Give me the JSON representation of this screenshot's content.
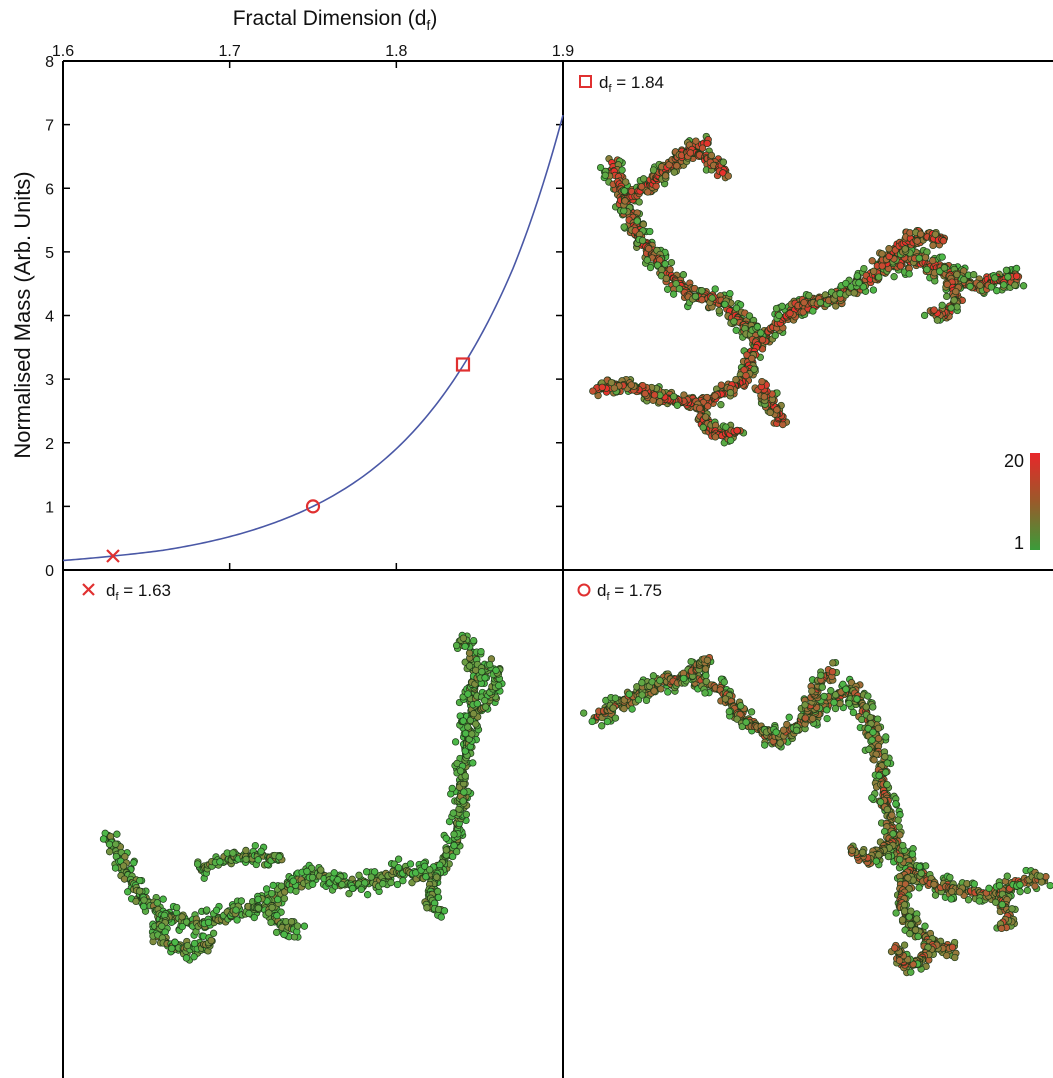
{
  "chart_data": [
    {
      "type": "line",
      "title": "",
      "xlabel_main": "Fractal Dimension (d",
      "xlabel_sub": "f",
      "xlabel_close": ")",
      "ylabel": "Normalised Mass (Arb. Units)",
      "xlim": [
        1.6,
        1.9
      ],
      "ylim": [
        0,
        8
      ],
      "x_ticks": [
        "1.6",
        "1.7",
        "1.8",
        "1.9"
      ],
      "y_ticks": [
        "0",
        "1",
        "2",
        "3",
        "4",
        "5",
        "6",
        "7",
        "8"
      ],
      "x_tick_values": [
        1.6,
        1.7,
        1.8,
        1.9
      ],
      "y_tick_values": [
        0,
        1,
        2,
        3,
        4,
        5,
        6,
        7,
        8
      ],
      "grid": false,
      "series": [
        {
          "color": "#4a58a6",
          "x": [
            1.6,
            1.63,
            1.66,
            1.69,
            1.72,
            1.75,
            1.78,
            1.81,
            1.84,
            1.87,
            1.9
          ],
          "y": [
            0.15,
            0.22,
            0.31,
            0.46,
            0.68,
            1.0,
            1.47,
            2.17,
            3.21,
            4.74,
            7.15
          ]
        }
      ],
      "markers": [
        {
          "shape": "x",
          "x": 1.63,
          "y": 0.22,
          "color": "#e03030"
        },
        {
          "shape": "o",
          "x": 1.75,
          "y": 1.0,
          "color": "#e03030"
        },
        {
          "shape": "s",
          "x": 1.84,
          "y": 3.23,
          "color": "#e03030"
        }
      ]
    }
  ],
  "panels": {
    "top_right": {
      "prefix": "d",
      "sub": "f",
      "value_text": " = 1.84",
      "marker": "square"
    },
    "bottom_left": {
      "prefix": "d",
      "sub": "f",
      "value_text": " = 1.63",
      "marker": "cross"
    },
    "bottom_right": {
      "prefix": "d",
      "sub": "f",
      "value_text": " = 1.75",
      "marker": "circle"
    }
  },
  "colorbar": {
    "max_label": "20",
    "min_label": "1",
    "color_high": "#e8272a",
    "color_low": "#3a9c3a"
  },
  "particle_colors": {
    "low": "#4cb848",
    "high": "#e8302c",
    "edge": "#1f3a1a"
  },
  "aggregates": [
    {
      "panel": "top_right",
      "path": [
        [
          612,
          165
        ],
        [
          625,
          200
        ],
        [
          640,
          240
        ],
        [
          665,
          270
        ],
        [
          690,
          295
        ],
        [
          720,
          300
        ],
        [
          740,
          320
        ],
        [
          760,
          340
        ],
        [
          775,
          325
        ],
        [
          800,
          305
        ],
        [
          830,
          300
        ],
        [
          860,
          285
        ],
        [
          890,
          265
        ],
        [
          920,
          260
        ],
        [
          950,
          275
        ],
        [
          975,
          285
        ],
        [
          1000,
          280
        ],
        [
          1020,
          275
        ]
      ],
      "branches": [
        [
          [
            625,
            200
          ],
          [
            650,
            185
          ],
          [
            670,
            165
          ],
          [
            690,
            150
          ],
          [
            710,
            140
          ]
        ],
        [
          [
            690,
            150
          ],
          [
            710,
            160
          ],
          [
            725,
            175
          ]
        ],
        [
          [
            760,
            340
          ],
          [
            750,
            360
          ],
          [
            745,
            380
          ],
          [
            720,
            395
          ],
          [
            700,
            405
          ],
          [
            670,
            400
          ],
          [
            640,
            390
          ],
          [
            620,
            385
          ],
          [
            595,
            390
          ]
        ],
        [
          [
            700,
            405
          ],
          [
            705,
            425
          ],
          [
            720,
            435
          ],
          [
            740,
            430
          ]
        ],
        [
          [
            780,
            420
          ],
          [
            770,
            400
          ],
          [
            760,
            385
          ]
        ],
        [
          [
            950,
            275
          ],
          [
            955,
            300
          ],
          [
            945,
            315
          ],
          [
            930,
            310
          ]
        ],
        [
          [
            880,
            265
          ],
          [
            900,
            245
          ],
          [
            920,
            235
          ],
          [
            945,
            240
          ]
        ]
      ],
      "density": 7,
      "red_bias": 0.55
    },
    {
      "panel": "bottom_left",
      "path": [
        [
          108,
          835
        ],
        [
          125,
          870
        ],
        [
          140,
          895
        ],
        [
          165,
          915
        ],
        [
          195,
          925
        ],
        [
          230,
          915
        ],
        [
          265,
          905
        ],
        [
          290,
          885
        ],
        [
          320,
          875
        ],
        [
          350,
          885
        ],
        [
          380,
          880
        ],
        [
          405,
          870
        ],
        [
          420,
          880
        ],
        [
          440,
          865
        ],
        [
          455,
          845
        ],
        [
          460,
          800
        ],
        [
          465,
          760
        ],
        [
          470,
          720
        ],
        [
          475,
          680
        ],
        [
          470,
          650
        ],
        [
          462,
          638
        ]
      ],
      "branches": [
        [
          [
            165,
            915
          ],
          [
            155,
            935
          ],
          [
            170,
            945
          ],
          [
            190,
            950
          ],
          [
            215,
            940
          ]
        ],
        [
          [
            265,
            905
          ],
          [
            280,
            925
          ],
          [
            300,
            930
          ]
        ],
        [
          [
            200,
            870
          ],
          [
            225,
            860
          ],
          [
            255,
            855
          ],
          [
            285,
            860
          ]
        ],
        [
          [
            470,
            720
          ],
          [
            490,
            700
          ],
          [
            498,
            670
          ]
        ],
        [
          [
            475,
            680
          ],
          [
            492,
            662
          ]
        ],
        [
          [
            440,
            865
          ],
          [
            430,
            895
          ],
          [
            438,
            915
          ]
        ]
      ],
      "density": 5,
      "red_bias": 0.12
    },
    {
      "panel": "bottom_right",
      "path": [
        [
          595,
          718
        ],
        [
          625,
          700
        ],
        [
          655,
          685
        ],
        [
          690,
          675
        ],
        [
          720,
          690
        ],
        [
          745,
          720
        ],
        [
          775,
          740
        ],
        [
          805,
          720
        ],
        [
          830,
          700
        ],
        [
          855,
          690
        ],
        [
          870,
          720
        ],
        [
          880,
          760
        ],
        [
          885,
          800
        ],
        [
          895,
          840
        ],
        [
          910,
          870
        ],
        [
          935,
          885
        ],
        [
          965,
          890
        ],
        [
          995,
          895
        ],
        [
          1025,
          880
        ],
        [
          1045,
          880
        ]
      ],
      "branches": [
        [
          [
            805,
            720
          ],
          [
            820,
            680
          ],
          [
            835,
            670
          ]
        ],
        [
          [
            895,
            840
          ],
          [
            870,
            860
          ],
          [
            850,
            850
          ]
        ],
        [
          [
            910,
            870
          ],
          [
            900,
            900
          ],
          [
            915,
            930
          ],
          [
            935,
            945
          ],
          [
            955,
            950
          ]
        ],
        [
          [
            935,
            945
          ],
          [
            920,
            960
          ],
          [
            905,
            965
          ],
          [
            895,
            945
          ]
        ],
        [
          [
            1000,
            895
          ],
          [
            1010,
            915
          ],
          [
            1000,
            930
          ]
        ],
        [
          [
            690,
            675
          ],
          [
            700,
            665
          ],
          [
            710,
            660
          ]
        ]
      ],
      "density": 6,
      "red_bias": 0.35
    }
  ]
}
